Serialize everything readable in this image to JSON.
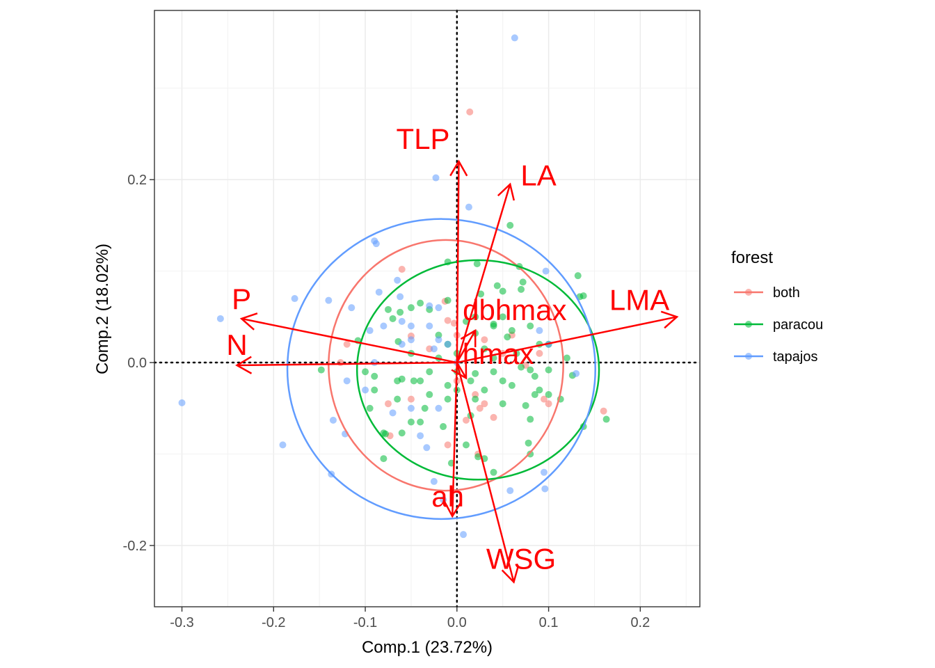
{
  "chart_data": {
    "type": "scatter",
    "subtype": "pca-biplot",
    "xlabel": "Comp.1 (23.72%)",
    "ylabel": "Comp.2 (18.02%)",
    "xlim": [
      -0.33,
      0.265
    ],
    "ylim": [
      -0.267,
      0.385
    ],
    "x_ticks": [
      -0.3,
      -0.2,
      -0.1,
      0.0,
      0.1,
      0.2
    ],
    "x_tick_labels": [
      "-0.3",
      "-0.2",
      "-0.1",
      "0.0",
      "0.1",
      "0.2"
    ],
    "y_ticks": [
      -0.2,
      0.0,
      0.2
    ],
    "y_tick_labels": [
      "-0.2",
      "0.0",
      "0.2"
    ],
    "grid": true,
    "zero_lines": "dotted",
    "legend": {
      "title": "forest",
      "placement": "right",
      "entries": [
        "both",
        "paracou",
        "tapajos"
      ]
    },
    "colors": {
      "both": "#F8766D",
      "paracou": "#00BA38",
      "tapajos": "#619CFF",
      "loadings": "#FF0000"
    },
    "series": [
      {
        "name": "both",
        "color": "#F8766D",
        "points": [
          [
            0.014,
            0.274
          ],
          [
            -0.06,
            0.102
          ],
          [
            -0.013,
            0.067
          ],
          [
            -0.05,
            0.029
          ],
          [
            -0.01,
            0.046
          ],
          [
            -0.003,
            0.043
          ],
          [
            0.03,
            0.025
          ],
          [
            -0.127,
            0.0
          ],
          [
            -0.12,
            0.02
          ],
          [
            -0.05,
            -0.04
          ],
          [
            -0.075,
            -0.045
          ],
          [
            0.075,
            -0.003
          ],
          [
            0.09,
            0.01
          ],
          [
            0.0,
            -0.02
          ],
          [
            0.02,
            -0.035
          ],
          [
            0.04,
            -0.06
          ],
          [
            0.095,
            -0.04
          ],
          [
            0.1,
            -0.045
          ],
          [
            0.16,
            -0.053
          ],
          [
            -0.01,
            -0.09
          ],
          [
            0.01,
            -0.063
          ],
          [
            0.025,
            -0.05
          ],
          [
            0.023,
            -0.1
          ],
          [
            -0.073,
            -0.08
          ],
          [
            0.03,
            -0.045
          ],
          [
            0.0,
            0.03
          ],
          [
            0.05,
            0.01
          ],
          [
            -0.03,
            0.015
          ],
          [
            0.06,
            0.03
          ]
        ]
      },
      {
        "name": "paracou",
        "color": "#00BA38",
        "points": [
          [
            0.058,
            0.15
          ],
          [
            -0.01,
            0.11
          ],
          [
            0.022,
            0.108
          ],
          [
            0.068,
            0.105
          ],
          [
            0.132,
            0.095
          ],
          [
            0.072,
            0.088
          ],
          [
            0.044,
            0.084
          ],
          [
            0.05,
            0.078
          ],
          [
            0.07,
            0.08
          ],
          [
            0.026,
            0.075
          ],
          [
            -0.01,
            0.068
          ],
          [
            -0.04,
            0.065
          ],
          [
            -0.03,
            0.058
          ],
          [
            -0.075,
            0.058
          ],
          [
            -0.062,
            0.055
          ],
          [
            0.02,
            0.05
          ],
          [
            0.05,
            0.05
          ],
          [
            0.01,
            0.045
          ],
          [
            0.04,
            0.042
          ],
          [
            0.08,
            0.04
          ],
          [
            -0.05,
            0.06
          ],
          [
            -0.07,
            0.048
          ],
          [
            0.06,
            0.035
          ],
          [
            0.02,
            0.032
          ],
          [
            0.04,
            0.04
          ],
          [
            0.055,
            0.028
          ],
          [
            0.1,
            0.02
          ],
          [
            0.134,
            0.072
          ],
          [
            0.138,
            0.073
          ],
          [
            -0.108,
            0.024
          ],
          [
            -0.064,
            0.023
          ],
          [
            -0.02,
            0.03
          ],
          [
            -0.01,
            0.02
          ],
          [
            0.03,
            0.015
          ],
          [
            0.065,
            0.01
          ],
          [
            0.09,
            0.02
          ],
          [
            0.12,
            0.005
          ],
          [
            -0.05,
            0.01
          ],
          [
            -0.02,
            0.005
          ],
          [
            0.0,
            0.01
          ],
          [
            0.04,
            0.005
          ],
          [
            -0.1,
            -0.01
          ],
          [
            -0.148,
            -0.008
          ],
          [
            -0.09,
            -0.015
          ],
          [
            -0.06,
            -0.018
          ],
          [
            -0.03,
            -0.01
          ],
          [
            0.0,
            -0.01
          ],
          [
            0.02,
            -0.012
          ],
          [
            0.04,
            -0.01
          ],
          [
            0.07,
            -0.005
          ],
          [
            0.1,
            -0.008
          ],
          [
            0.126,
            -0.014
          ],
          [
            -0.065,
            -0.02
          ],
          [
            -0.04,
            -0.02
          ],
          [
            -0.01,
            -0.025
          ],
          [
            0.015,
            -0.02
          ],
          [
            0.05,
            -0.02
          ],
          [
            0.085,
            -0.015
          ],
          [
            -0.09,
            -0.03
          ],
          [
            -0.065,
            -0.04
          ],
          [
            -0.03,
            -0.035
          ],
          [
            0.0,
            -0.03
          ],
          [
            0.03,
            -0.03
          ],
          [
            0.06,
            -0.025
          ],
          [
            0.09,
            -0.03
          ],
          [
            0.085,
            -0.035
          ],
          [
            0.02,
            -0.04
          ],
          [
            -0.035,
            -0.05
          ],
          [
            -0.01,
            -0.04
          ],
          [
            0.05,
            -0.045
          ],
          [
            0.075,
            -0.047
          ],
          [
            0.1,
            -0.035
          ],
          [
            0.113,
            -0.04
          ],
          [
            -0.04,
            -0.065
          ],
          [
            -0.06,
            -0.077
          ],
          [
            -0.015,
            -0.07
          ],
          [
            0.015,
            -0.058
          ],
          [
            0.08,
            -0.062
          ],
          [
            0.138,
            -0.07
          ],
          [
            -0.095,
            -0.05
          ],
          [
            0.163,
            -0.062
          ],
          [
            0.078,
            -0.088
          ],
          [
            -0.08,
            -0.077
          ],
          [
            -0.078,
            -0.078
          ],
          [
            -0.05,
            -0.065
          ],
          [
            0.01,
            -0.09
          ],
          [
            -0.006,
            -0.11
          ],
          [
            0.03,
            -0.105
          ],
          [
            -0.08,
            -0.105
          ],
          [
            0.023,
            -0.103
          ],
          [
            -0.047,
            -0.02
          ],
          [
            0.08,
            -0.008
          ],
          [
            0.04,
            -0.12
          ],
          [
            0.08,
            -0.1
          ]
        ]
      },
      {
        "name": "tapajos",
        "color": "#619CFF",
        "points": [
          [
            0.063,
            0.355
          ],
          [
            -0.023,
            0.202
          ],
          [
            0.013,
            0.17
          ],
          [
            -0.088,
            0.13
          ],
          [
            -0.09,
            0.133
          ],
          [
            0.097,
            0.1
          ],
          [
            -0.065,
            0.09
          ],
          [
            -0.085,
            0.077
          ],
          [
            -0.062,
            0.072
          ],
          [
            -0.177,
            0.07
          ],
          [
            -0.14,
            0.068
          ],
          [
            -0.115,
            0.06
          ],
          [
            -0.02,
            0.06
          ],
          [
            -0.03,
            0.062
          ],
          [
            -0.05,
            0.04
          ],
          [
            -0.08,
            0.04
          ],
          [
            -0.095,
            0.035
          ],
          [
            -0.05,
            0.025
          ],
          [
            -0.02,
            0.025
          ],
          [
            -0.01,
            0.02
          ],
          [
            -0.03,
            0.04
          ],
          [
            -0.06,
            0.045
          ],
          [
            -0.258,
            0.048
          ],
          [
            -0.06,
            0.02
          ],
          [
            -0.025,
            0.015
          ],
          [
            -0.09,
            0.0
          ],
          [
            0.09,
            0.035
          ],
          [
            -0.3,
            -0.044
          ],
          [
            -0.19,
            -0.09
          ],
          [
            -0.135,
            -0.063
          ],
          [
            -0.122,
            -0.078
          ],
          [
            -0.137,
            -0.122
          ],
          [
            -0.04,
            -0.08
          ],
          [
            -0.033,
            -0.093
          ],
          [
            -0.07,
            -0.055
          ],
          [
            -0.1,
            -0.03
          ],
          [
            -0.12,
            -0.02
          ],
          [
            -0.02,
            -0.05
          ],
          [
            -0.025,
            -0.13
          ],
          [
            -0.015,
            -0.15
          ],
          [
            0.095,
            -0.12
          ],
          [
            0.096,
            -0.138
          ],
          [
            0.058,
            -0.14
          ],
          [
            0.007,
            -0.188
          ],
          [
            -0.05,
            -0.05
          ],
          [
            0.0,
            -0.0
          ],
          [
            0.13,
            -0.012
          ],
          [
            0.1,
            0.02
          ]
        ]
      }
    ],
    "ellipses": [
      {
        "name": "both",
        "color": "#F8766D",
        "cx": -0.012,
        "cy": -0.003,
        "rx": 0.128,
        "ry": 0.137
      },
      {
        "name": "paracou",
        "color": "#00BA38",
        "cx": 0.023,
        "cy": -0.008,
        "rx": 0.132,
        "ry": 0.12
      },
      {
        "name": "tapajos",
        "color": "#619CFF",
        "cx": -0.017,
        "cy": -0.007,
        "rx": 0.168,
        "ry": 0.164
      }
    ],
    "loadings": [
      {
        "name": "TLP",
        "x": 0.002,
        "y": 0.22,
        "label_x": -0.037,
        "label_y": 0.242
      },
      {
        "name": "LA",
        "x": 0.058,
        "y": 0.195,
        "label_x": 0.089,
        "label_y": 0.202
      },
      {
        "name": "LMA",
        "x": 0.24,
        "y": 0.05,
        "label_x": 0.199,
        "label_y": 0.066
      },
      {
        "name": "P",
        "x": -0.235,
        "y": 0.048,
        "label_x": -0.235,
        "label_y": 0.067
      },
      {
        "name": "N",
        "x": -0.24,
        "y": -0.003,
        "label_x": -0.24,
        "label_y": 0.017
      },
      {
        "name": "dbhmax",
        "x": 0.02,
        "y": 0.035,
        "label_x": 0.063,
        "label_y": 0.055
      },
      {
        "name": "hmax",
        "x": 0.01,
        "y": -0.017,
        "label_x": 0.045,
        "label_y": 0.007
      },
      {
        "name": "ah",
        "x": -0.005,
        "y": -0.168,
        "label_x": -0.01,
        "label_y": -0.149
      },
      {
        "name": "WSG",
        "x": 0.062,
        "y": -0.24,
        "label_x": 0.07,
        "label_y": -0.217
      }
    ]
  }
}
